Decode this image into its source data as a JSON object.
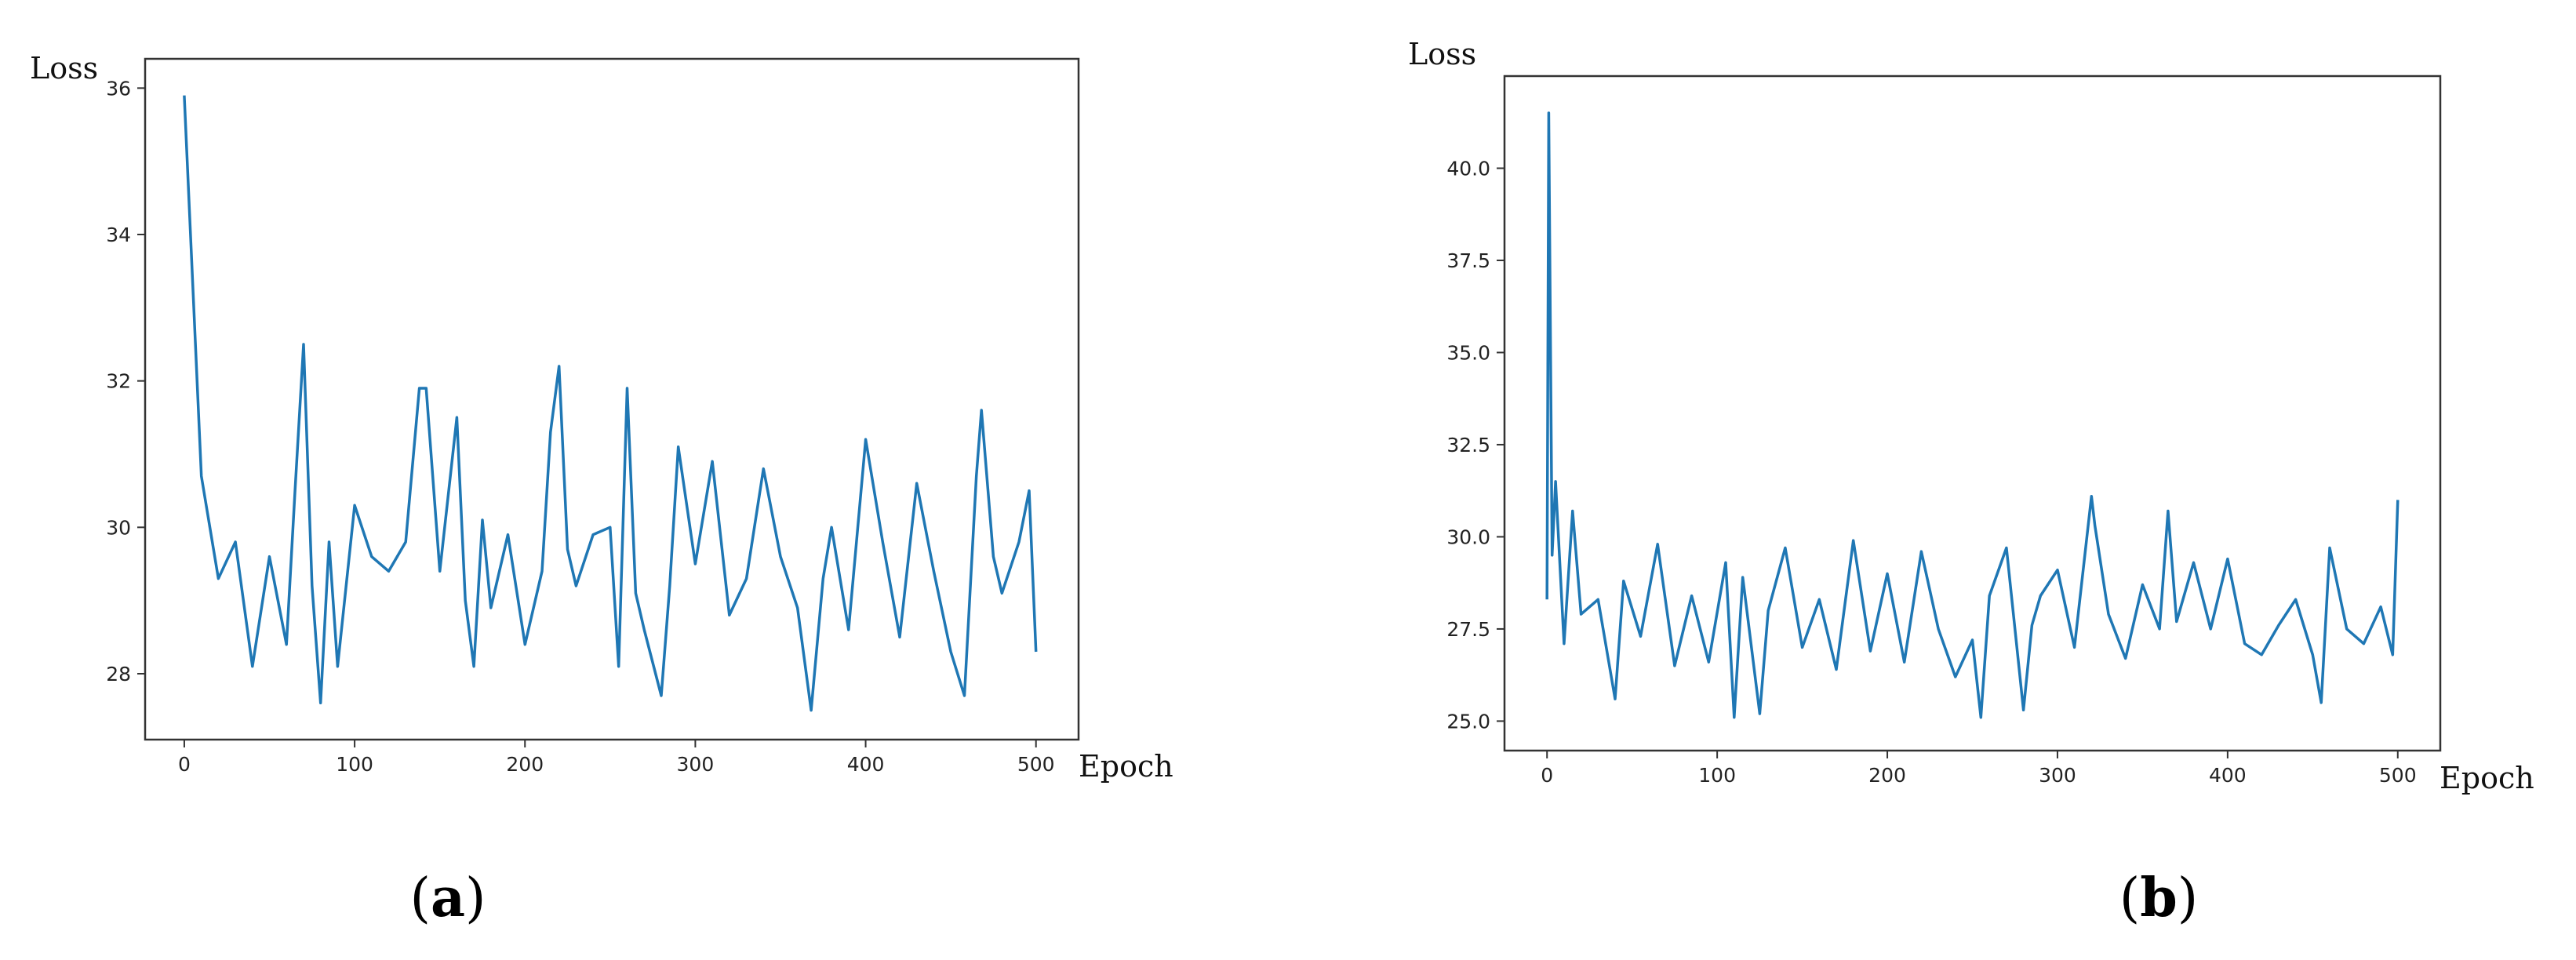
{
  "chart_data": [
    {
      "id": "a",
      "type": "line",
      "panel_label": "a",
      "xlabel": "Epoch",
      "ylabel": "Loss",
      "xlim": [
        -23,
        525
      ],
      "ylim": [
        27.1,
        36.4
      ],
      "xticks": [
        0,
        100,
        200,
        300,
        400,
        500
      ],
      "yticks": [
        28,
        30,
        32,
        34,
        36
      ],
      "ytick_labels": [
        "28",
        "30",
        "32",
        "34",
        "36"
      ],
      "grid": false,
      "line_color": "#1f77b4",
      "series": [
        {
          "x": [
            0,
            10,
            20,
            30,
            40,
            50,
            60,
            65,
            70,
            75,
            80,
            85,
            90,
            100,
            110,
            120,
            130,
            138,
            142,
            150,
            160,
            165,
            170,
            175,
            180,
            190,
            200,
            210,
            215,
            220,
            225,
            230,
            240,
            250,
            255,
            260,
            265,
            270,
            280,
            285,
            290,
            300,
            310,
            320,
            330,
            340,
            350,
            360,
            368,
            375,
            380,
            390,
            400,
            410,
            420,
            430,
            440,
            450,
            458,
            465,
            468,
            475,
            480,
            490,
            496,
            500
          ],
          "y": [
            35.9,
            30.7,
            29.3,
            29.8,
            28.1,
            29.6,
            28.4,
            30.5,
            32.5,
            29.2,
            27.6,
            29.8,
            28.1,
            30.3,
            29.6,
            29.4,
            29.8,
            31.9,
            31.9,
            29.4,
            31.5,
            29.0,
            28.1,
            30.1,
            28.9,
            29.9,
            28.4,
            29.4,
            31.3,
            32.2,
            29.7,
            29.2,
            29.9,
            30.0,
            28.1,
            31.9,
            29.1,
            28.6,
            27.7,
            29.2,
            31.1,
            29.5,
            30.9,
            28.8,
            29.3,
            30.8,
            29.6,
            28.9,
            27.5,
            29.3,
            30.0,
            28.6,
            31.2,
            29.8,
            28.5,
            30.6,
            29.4,
            28.3,
            27.7,
            30.7,
            31.6,
            29.6,
            29.1,
            29.8,
            30.5,
            28.3
          ]
        }
      ]
    },
    {
      "id": "b",
      "type": "line",
      "panel_label": "b",
      "xlabel": "Epoch",
      "ylabel": "Loss",
      "xlim": [
        -25,
        525
      ],
      "ylim": [
        24.2,
        42.5
      ],
      "xticks": [
        0,
        100,
        200,
        300,
        400,
        500
      ],
      "yticks": [
        25.0,
        27.5,
        30.0,
        32.5,
        35.0,
        37.5,
        40.0
      ],
      "ytick_labels": [
        "25.0",
        "27.5",
        "30.0",
        "32.5",
        "35.0",
        "37.5",
        "40.0"
      ],
      "grid": false,
      "line_color": "#1f77b4",
      "series": [
        {
          "x": [
            0,
            1,
            3,
            5,
            10,
            15,
            20,
            30,
            40,
            45,
            55,
            65,
            75,
            85,
            95,
            105,
            110,
            115,
            125,
            130,
            140,
            150,
            160,
            170,
            180,
            190,
            200,
            210,
            220,
            230,
            240,
            250,
            255,
            260,
            270,
            280,
            285,
            290,
            300,
            310,
            320,
            322,
            330,
            340,
            350,
            360,
            365,
            370,
            380,
            390,
            400,
            410,
            420,
            430,
            440,
            450,
            455,
            460,
            470,
            480,
            490,
            497,
            500
          ],
          "y": [
            28.3,
            41.5,
            29.5,
            31.5,
            27.1,
            30.7,
            27.9,
            28.3,
            25.6,
            28.8,
            27.3,
            29.8,
            26.5,
            28.4,
            26.6,
            29.3,
            25.1,
            28.9,
            25.2,
            28.0,
            29.7,
            27.0,
            28.3,
            26.4,
            29.9,
            26.9,
            29.0,
            26.6,
            29.6,
            27.5,
            26.2,
            27.2,
            25.1,
            28.4,
            29.7,
            25.3,
            27.6,
            28.4,
            29.1,
            27.0,
            31.1,
            30.3,
            27.9,
            26.7,
            28.7,
            27.5,
            30.7,
            27.7,
            29.3,
            27.5,
            29.4,
            27.1,
            26.8,
            27.6,
            28.3,
            26.8,
            25.5,
            29.7,
            27.5,
            27.1,
            28.1,
            26.8,
            31.0
          ]
        }
      ]
    }
  ]
}
